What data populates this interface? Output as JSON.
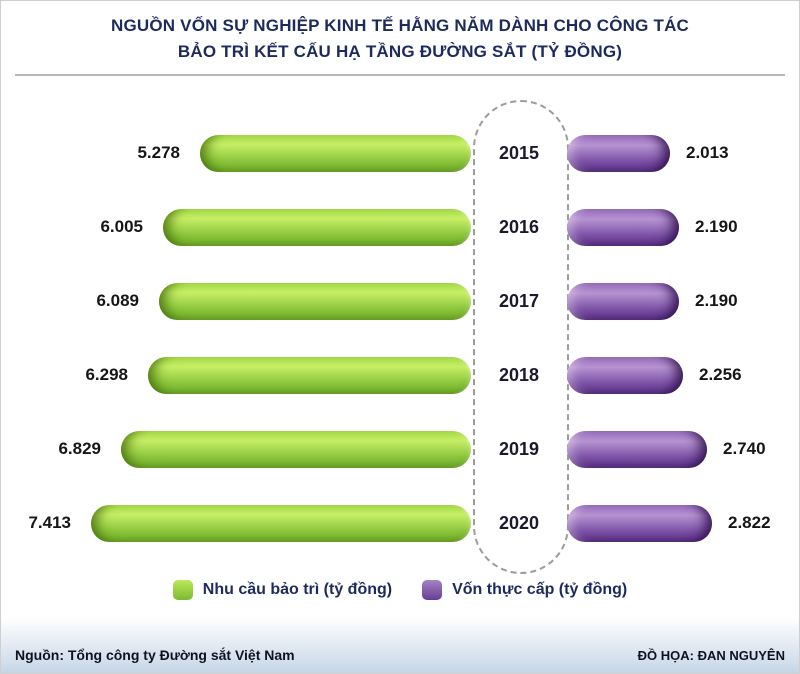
{
  "title": {
    "line1": "NGUỒN VỐN SỰ NGHIỆP KINH TẾ HẰNG NĂM DÀNH CHO CÔNG TÁC",
    "line2": "BẢO TRÌ KẾT CẤU HẠ TẦNG ĐƯỜNG SẮT (TỶ ĐỒNG)"
  },
  "chart_data": {
    "type": "bar",
    "layout": "butterfly-horizontal",
    "categories": [
      "2015",
      "2016",
      "2017",
      "2018",
      "2019",
      "2020"
    ],
    "series": [
      {
        "name": "Nhu cầu bảo trì (tỷ đồng)",
        "side": "left",
        "color": "#8cc63c",
        "values": [
          5278,
          6005,
          6089,
          6298,
          6829,
          7413
        ],
        "labels": [
          "5.278",
          "6.005",
          "6.089",
          "6.298",
          "6.829",
          "7.413"
        ]
      },
      {
        "name": "Vốn thực cấp (tỷ đồng)",
        "side": "right",
        "color": "#7a4fa5",
        "values": [
          2013,
          2190,
          2190,
          2256,
          2740,
          2822
        ],
        "labels": [
          "2.013",
          "2.190",
          "2.190",
          "2.256",
          "2.740",
          "2.822"
        ]
      }
    ],
    "value_max_for_scale": 7413,
    "legend_position": "bottom",
    "grid": false
  },
  "legend": [
    {
      "label": "Nhu cầu bảo trì  (tỷ đồng)",
      "color": "#8cc63c"
    },
    {
      "label": "Vốn thực cấp  (tỷ đồng)",
      "color": "#7a4fa5"
    }
  ],
  "footer": {
    "source": "Nguồn: Tổng công ty Đường sắt Việt Nam",
    "credit": "ĐỒ HỌA: ĐAN NGUYÊN"
  }
}
